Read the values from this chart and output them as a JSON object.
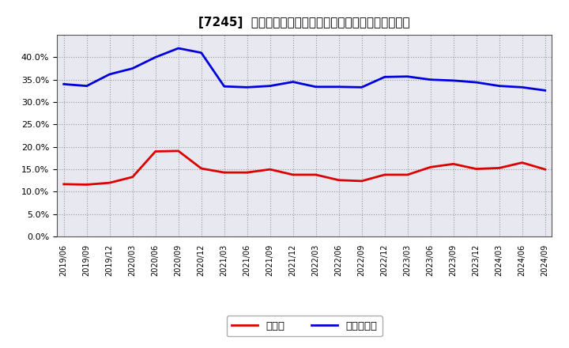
{
  "title": "[7245]  現領金、有利子負債の総資産に対する比率の推移",
  "x_labels": [
    "2019/06",
    "2019/09",
    "2019/12",
    "2020/03",
    "2020/06",
    "2020/09",
    "2020/12",
    "2021/03",
    "2021/06",
    "2021/09",
    "2021/12",
    "2022/03",
    "2022/06",
    "2022/09",
    "2022/12",
    "2023/03",
    "2023/06",
    "2023/09",
    "2023/12",
    "2024/03",
    "2024/06",
    "2024/09"
  ],
  "cash": [
    0.117,
    0.116,
    0.12,
    0.133,
    0.19,
    0.191,
    0.152,
    0.143,
    0.143,
    0.15,
    0.138,
    0.138,
    0.126,
    0.124,
    0.138,
    0.138,
    0.155,
    0.162,
    0.151,
    0.153,
    0.165,
    0.15
  ],
  "debt": [
    0.34,
    0.336,
    0.362,
    0.375,
    0.4,
    0.42,
    0.41,
    0.335,
    0.333,
    0.336,
    0.345,
    0.334,
    0.334,
    0.333,
    0.356,
    0.357,
    0.35,
    0.348,
    0.344,
    0.336,
    0.333,
    0.326
  ],
  "cash_color": "#dd0000",
  "debt_color": "#0000dd",
  "bg_color": "#ffffff",
  "plot_bg_color": "#e8e8f0",
  "grid_color": "#999999",
  "legend_cash": "現領金",
  "legend_debt": "有利子負債",
  "ylim": [
    0.0,
    0.45
  ],
  "yticks": [
    0.0,
    0.05,
    0.1,
    0.15,
    0.2,
    0.25,
    0.3,
    0.35,
    0.4
  ],
  "line_width": 2.0
}
